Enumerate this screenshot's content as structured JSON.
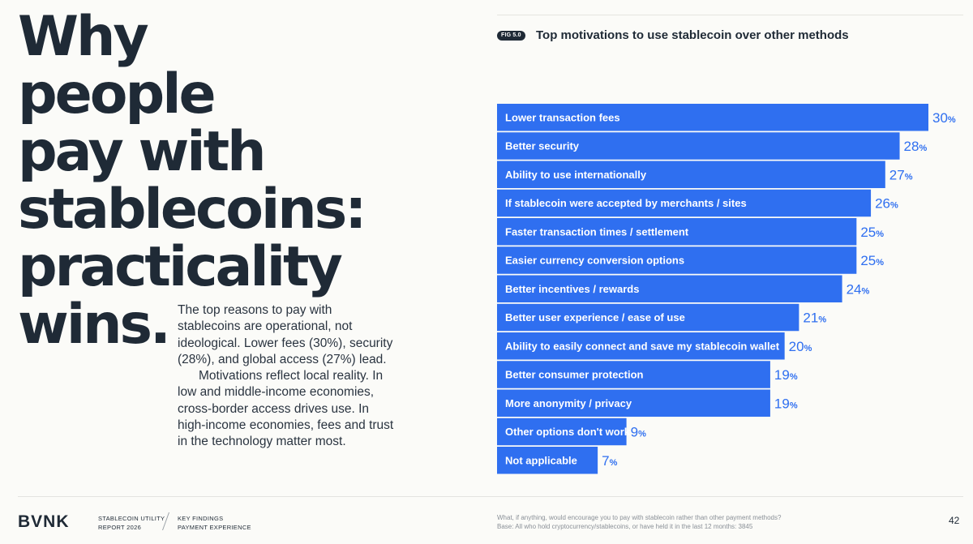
{
  "headline": {
    "lines": [
      "Why people",
      "pay with",
      "stablecoins:",
      "practicality",
      "wins."
    ]
  },
  "body": {
    "paragraph1": "The top reasons to pay with stablecoins are operational, not ideological. Lower fees (30%), security (28%), and global access (27%) lead.",
    "paragraph2": "Motivations reflect local reality. In low and middle-income economies, cross-border access drives use. In high-income economies, fees and trust in the technology matter most."
  },
  "figure": {
    "tag": "FIG 5.0",
    "title": "Top motivations to use stablecoin over other methods"
  },
  "chart_data": {
    "type": "bar",
    "orientation": "horizontal",
    "title": "Top motivations to use stablecoin over other methods",
    "unit": "%",
    "bar_color": "#2f6ff0",
    "value_color": "#2f6ff0",
    "categories": [
      "Lower transaction fees",
      "Better security",
      "Ability to use internationally",
      "If stablecoin were accepted by merchants / sites",
      "Faster transaction times / settlement",
      "Easier currency conversion options",
      "Better incentives / rewards",
      "Better user experience / ease of use",
      "Ability to easily connect and save my stablecoin wallet",
      "Better consumer protection",
      "More anonymity / privacy",
      "Other options don't work",
      "Not applicable"
    ],
    "values": [
      30,
      28,
      27,
      26,
      25,
      25,
      24,
      21,
      20,
      19,
      19,
      9,
      7
    ]
  },
  "footer": {
    "logo": "BVNK",
    "report_line1": "STABLECOIN UTILITY",
    "report_line2": "REPORT 2026",
    "section_line1": "KEY FINDINGS",
    "section_line2": "PAYMENT EXPERIENCE",
    "question": "What, if anything, would encourage you to pay with stablecoin rather than other payment methods?",
    "base": "Base: All who hold cryptocurrency/stablecoins, or have held it in the last 12 months: 3845",
    "page_number": "42"
  }
}
